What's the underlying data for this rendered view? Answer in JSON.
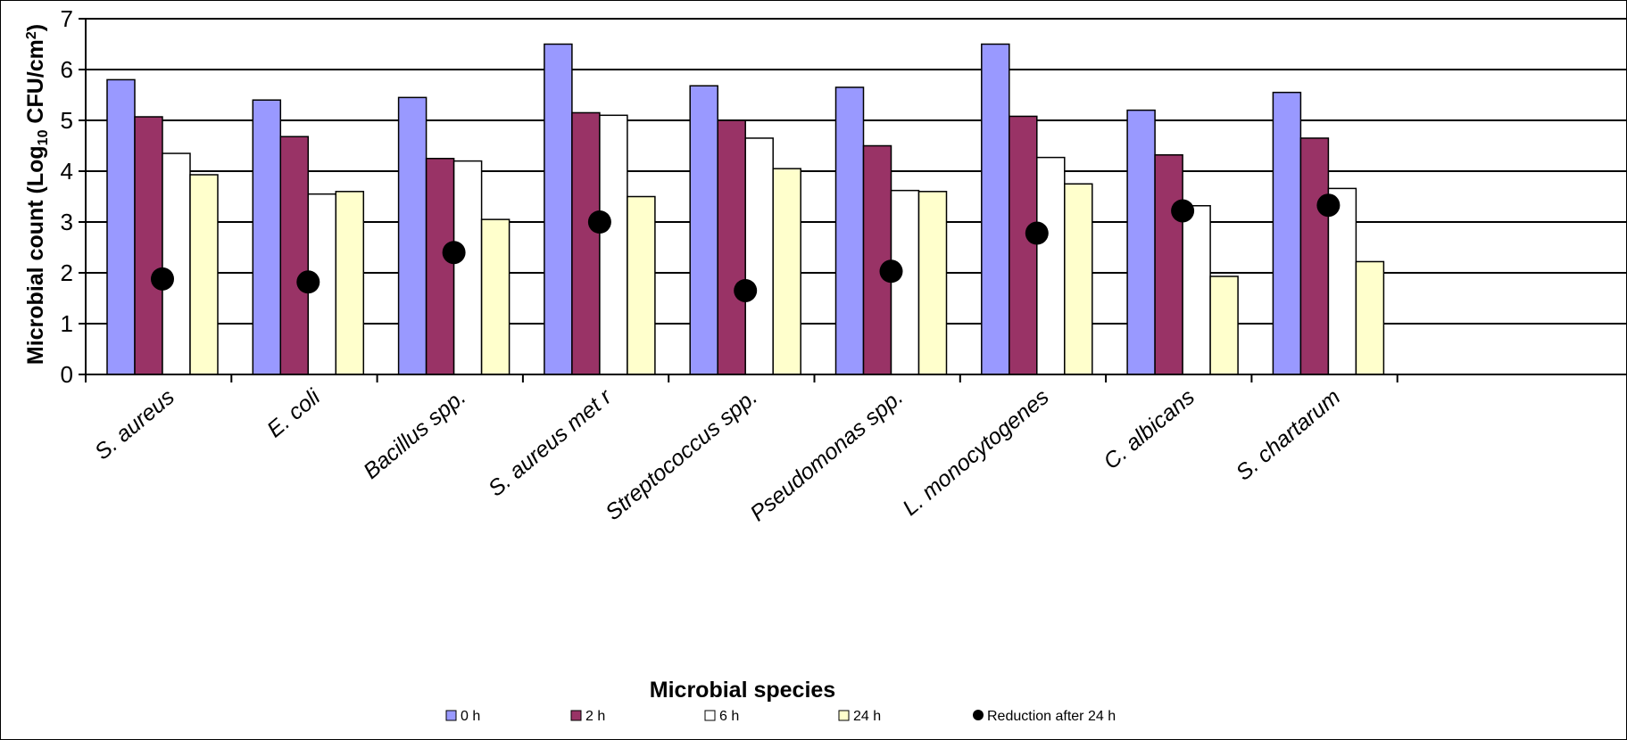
{
  "chart_data": {
    "type": "bar",
    "xlabel": "Microbial species",
    "ylabel_main": "Microbial count (Log",
    "ylabel_sub": "10",
    "ylabel_unit": " CFU/cm",
    "ylabel_sup": "2",
    "ylabel_end": ")",
    "ylim": [
      0,
      7
    ],
    "yticks": [
      "0",
      "1",
      "2",
      "3",
      "4",
      "5",
      "6",
      "7"
    ],
    "grid": true,
    "legend_position": "bottom",
    "categories": [
      "S. aureus",
      "E. coli",
      "Bacillus spp.",
      "S. aureus met r",
      "Streptococcus spp.",
      "Pseudomonas spp.",
      "L. monocytogenes",
      "C. albicans",
      "S. chartarum"
    ],
    "series": [
      {
        "name": "0 h",
        "color": "#9999ff",
        "values": [
          5.8,
          5.4,
          5.45,
          6.5,
          5.68,
          5.65,
          6.5,
          5.2,
          5.55
        ]
      },
      {
        "name": "2 h",
        "color": "#993366",
        "values": [
          5.07,
          4.68,
          4.25,
          5.15,
          5.0,
          4.5,
          5.08,
          4.32,
          4.65
        ]
      },
      {
        "name": "6 h",
        "color": "#ffffff",
        "values": [
          4.35,
          3.55,
          4.2,
          5.1,
          4.65,
          3.62,
          4.27,
          3.32,
          3.66
        ]
      },
      {
        "name": "24 h",
        "color": "#ffffcc",
        "values": [
          3.93,
          3.6,
          3.05,
          3.5,
          4.05,
          3.6,
          3.75,
          1.93,
          2.22
        ]
      }
    ],
    "reduction": {
      "name": "Reduction after 24 h",
      "color": "#000000",
      "values": [
        1.88,
        1.82,
        2.4,
        3.0,
        1.65,
        2.03,
        2.78,
        3.22,
        3.33
      ]
    }
  }
}
